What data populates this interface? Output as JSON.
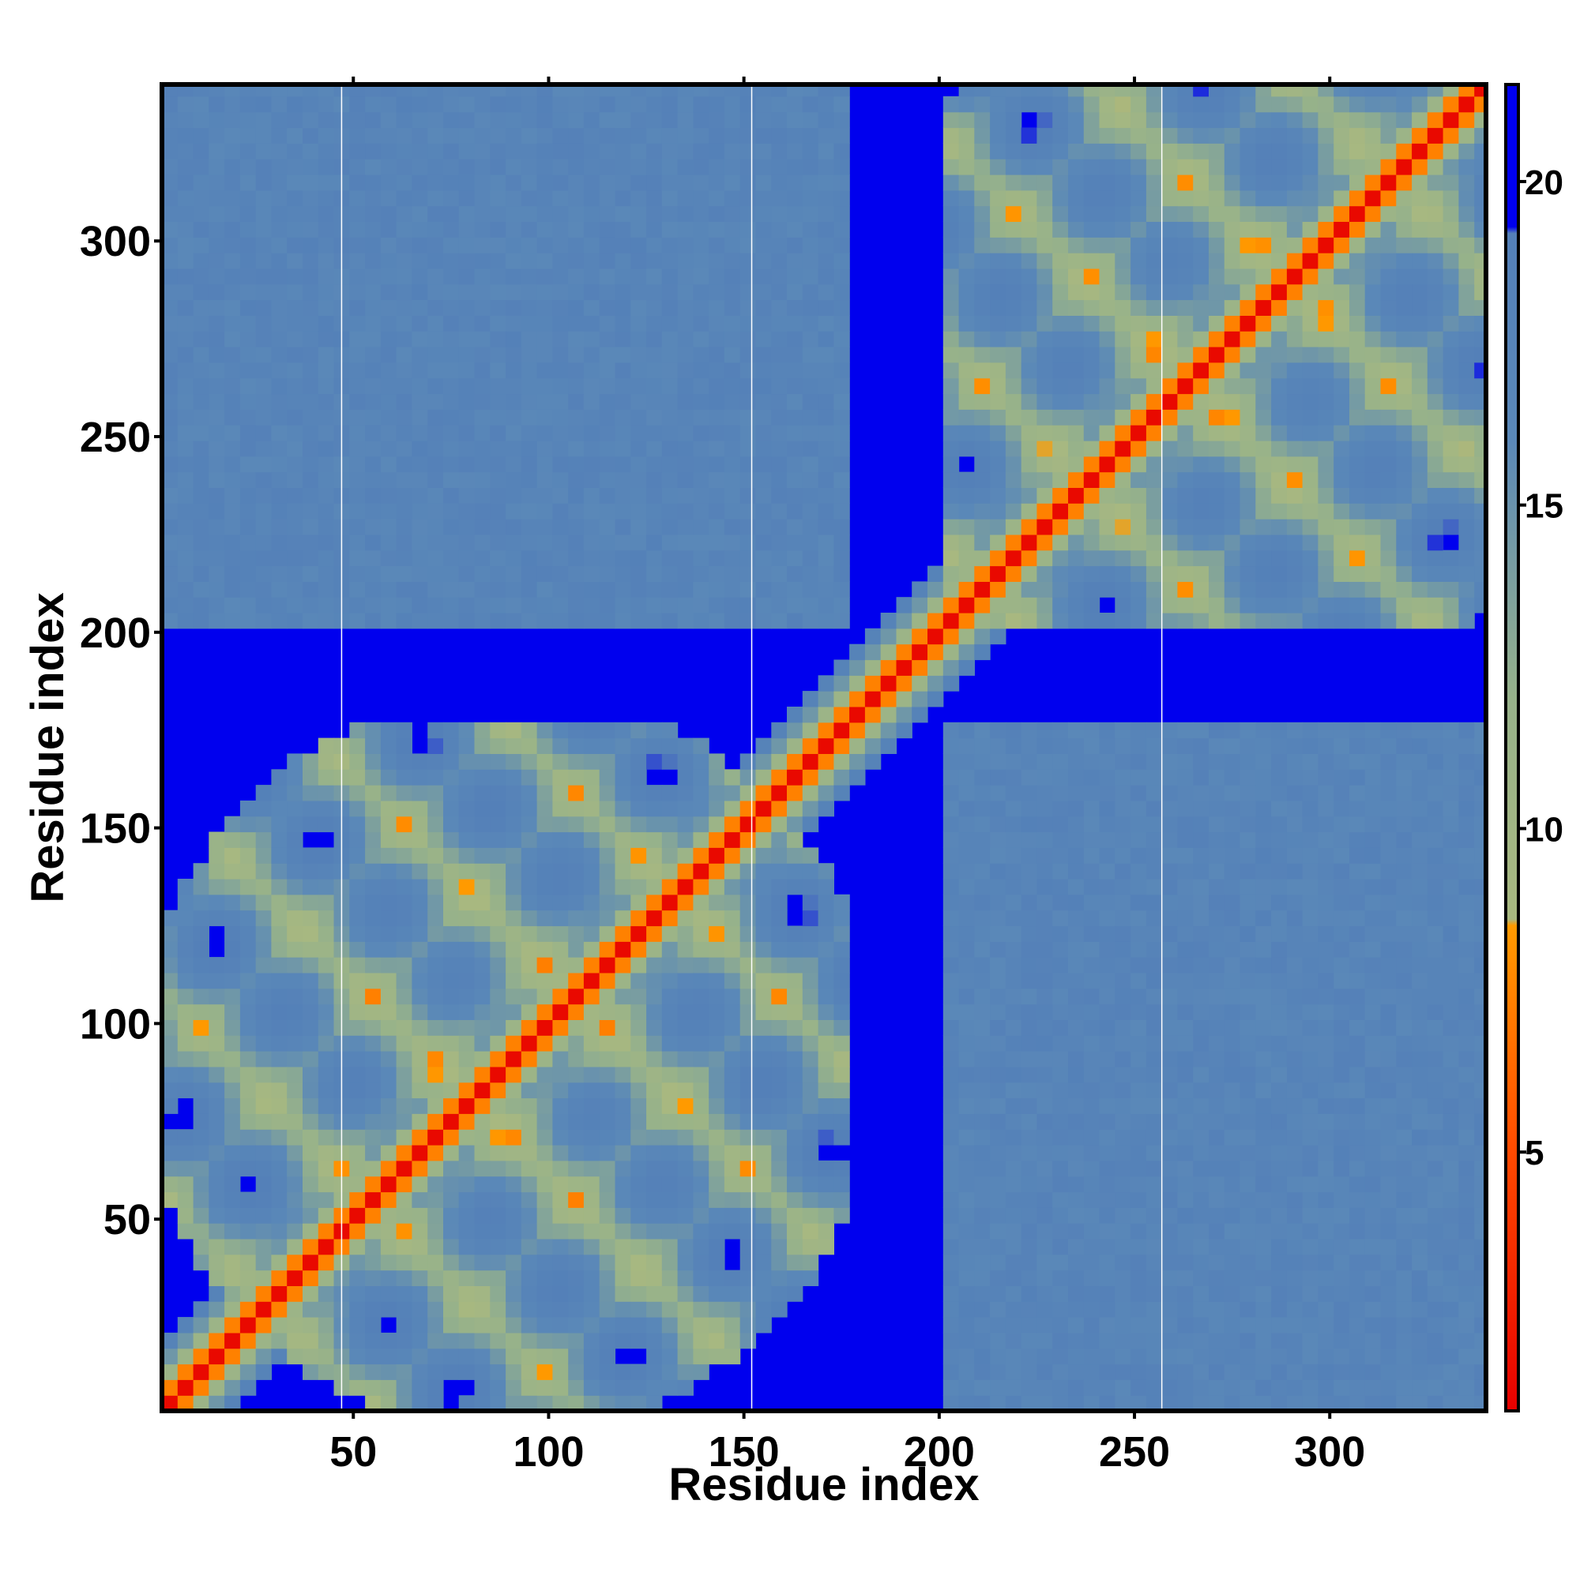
{
  "chart_data": {
    "type": "heatmap",
    "title": "",
    "xlabel": "Residue index",
    "ylabel": "Residue index",
    "xlim": [
      1,
      340
    ],
    "ylim": [
      1,
      340
    ],
    "xticks": [
      50,
      100,
      150,
      200,
      250,
      300
    ],
    "yticks": [
      50,
      100,
      150,
      200,
      250,
      300
    ],
    "colorbar": {
      "range": [
        1,
        21.5
      ],
      "ticks": [
        5,
        10,
        15,
        20
      ],
      "stops": [
        {
          "value": 1,
          "color": "#e60000"
        },
        {
          "value": 5,
          "color": "#ff4a00"
        },
        {
          "value": 8.5,
          "color": "#ff9a00"
        },
        {
          "value": 8.6,
          "color": "#a8b880"
        },
        {
          "value": 12,
          "color": "#97b28a"
        },
        {
          "value": 16,
          "color": "#5a88b8"
        },
        {
          "value": 19.2,
          "color": "#5480b8"
        },
        {
          "value": 19.3,
          "color": "#0000ee"
        },
        {
          "value": 21.5,
          "color": "#0000ee"
        }
      ]
    },
    "domains": [
      {
        "name": "",
        "start": 1,
        "end": 175
      },
      {
        "name": "",
        "start": 200,
        "end": 340
      }
    ],
    "separators_x": [
      47,
      152,
      257
    ],
    "colors": {
      "background": "#0000ee",
      "near": "#e60000",
      "mid": "#ff9a00",
      "far": "#5a88b8",
      "separator": "#ffffff"
    }
  }
}
